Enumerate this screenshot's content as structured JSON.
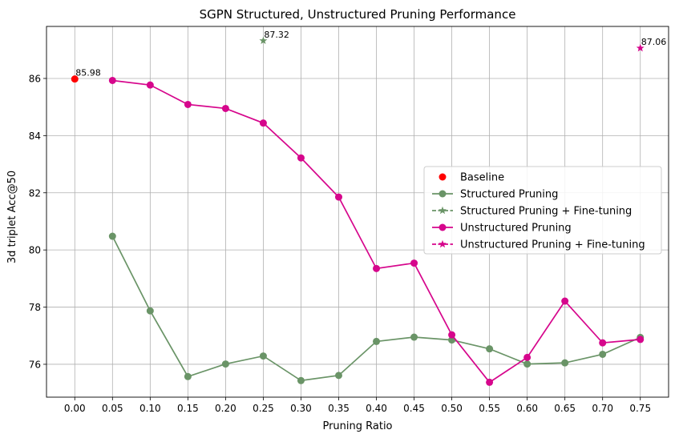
{
  "chart_data": {
    "type": "line",
    "title": "SGPN Structured, Unstructured Pruning Performance",
    "xlabel": "Pruning Ratio",
    "ylabel": "3d triplet Acc@50",
    "xlim": [
      -0.0375,
      0.7875
    ],
    "ylim": [
      74.85,
      87.82
    ],
    "x_ticks": [
      "0.00",
      "0.05",
      "0.10",
      "0.15",
      "0.20",
      "0.25",
      "0.30",
      "0.35",
      "0.40",
      "0.45",
      "0.50",
      "0.55",
      "0.60",
      "0.65",
      "0.70",
      "0.75"
    ],
    "y_ticks": [
      76,
      78,
      80,
      82,
      84,
      86
    ],
    "grid": true,
    "legend_position": "center-right",
    "series": [
      {
        "name": "Baseline",
        "kind": "scatter",
        "color": "#ff0000",
        "marker": "circle",
        "points": [
          {
            "x": 0.0,
            "y": 85.98
          }
        ],
        "annotations": [
          "85.98"
        ]
      },
      {
        "name": "Structured Pruning",
        "kind": "line",
        "color": "#6a9467",
        "marker": "circle",
        "points": [
          {
            "x": 0.05,
            "y": 80.48
          },
          {
            "x": 0.1,
            "y": 77.87
          },
          {
            "x": 0.15,
            "y": 75.57
          },
          {
            "x": 0.2,
            "y": 76.01
          },
          {
            "x": 0.25,
            "y": 76.29
          },
          {
            "x": 0.3,
            "y": 75.43
          },
          {
            "x": 0.35,
            "y": 75.61
          },
          {
            "x": 0.4,
            "y": 76.8
          },
          {
            "x": 0.45,
            "y": 76.95
          },
          {
            "x": 0.5,
            "y": 76.85
          },
          {
            "x": 0.55,
            "y": 76.54
          },
          {
            "x": 0.6,
            "y": 76.01
          },
          {
            "x": 0.65,
            "y": 76.05
          },
          {
            "x": 0.7,
            "y": 76.35
          },
          {
            "x": 0.75,
            "y": 76.94
          }
        ]
      },
      {
        "name": "Structured Pruning + Fine-tuning",
        "kind": "scatter",
        "linestyle": "dashed",
        "color": "#6a9467",
        "marker": "star",
        "points": [
          {
            "x": 0.25,
            "y": 87.32
          }
        ],
        "annotations": [
          "87.32"
        ]
      },
      {
        "name": "Unstructured Pruning",
        "kind": "line",
        "color": "#d6068c",
        "marker": "circle",
        "points": [
          {
            "x": 0.05,
            "y": 85.93
          },
          {
            "x": 0.1,
            "y": 85.77
          },
          {
            "x": 0.15,
            "y": 85.09
          },
          {
            "x": 0.2,
            "y": 84.95
          },
          {
            "x": 0.25,
            "y": 84.44
          },
          {
            "x": 0.3,
            "y": 83.22
          },
          {
            "x": 0.35,
            "y": 81.85
          },
          {
            "x": 0.4,
            "y": 79.35
          },
          {
            "x": 0.45,
            "y": 79.54
          },
          {
            "x": 0.5,
            "y": 77.03
          },
          {
            "x": 0.55,
            "y": 75.37
          },
          {
            "x": 0.6,
            "y": 76.24
          },
          {
            "x": 0.65,
            "y": 78.21
          },
          {
            "x": 0.7,
            "y": 76.75
          },
          {
            "x": 0.75,
            "y": 76.87
          }
        ]
      },
      {
        "name": "Unstructured Pruning + Fine-tuning",
        "kind": "scatter",
        "linestyle": "dashed",
        "color": "#d6068c",
        "marker": "star",
        "points": [
          {
            "x": 0.75,
            "y": 87.06
          }
        ],
        "annotations": [
          "87.06"
        ]
      }
    ]
  }
}
